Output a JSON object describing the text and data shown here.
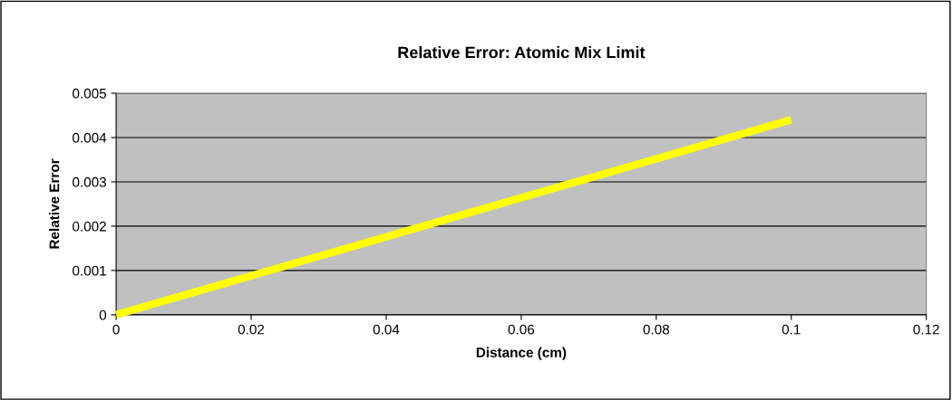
{
  "chart_data": {
    "type": "line",
    "title": "Relative Error: Atomic Mix Limit",
    "xlabel": "Distance (cm)",
    "ylabel": "Relative Error",
    "x": [
      0,
      0.02,
      0.04,
      0.06,
      0.08,
      0.1
    ],
    "series": [
      {
        "color": "#ffff00",
        "values": [
          0,
          0.00088,
          0.00176,
          0.00264,
          0.00352,
          0.0044
        ]
      }
    ],
    "xlim": [
      0,
      0.12
    ],
    "xticks": [
      0,
      0.02,
      0.04,
      0.06,
      0.08,
      0.1,
      0.12
    ],
    "ylim": [
      0,
      0.005
    ],
    "yticks": [
      0,
      0.001,
      0.002,
      0.003,
      0.004,
      0.005
    ],
    "grid": "y",
    "legend": false,
    "marker": "none",
    "line_style": "solid"
  }
}
